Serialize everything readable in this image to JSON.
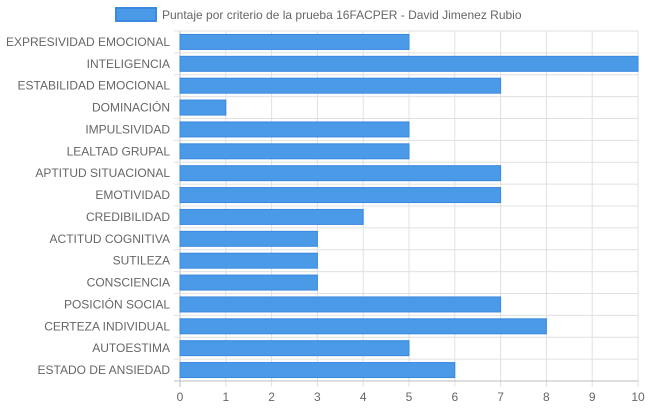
{
  "chart_data": {
    "type": "bar",
    "orientation": "horizontal",
    "categories": [
      "EXPRESIVIDAD EMOCIONAL",
      "INTELIGENCIA",
      "ESTABILIDAD EMOCIONAL",
      "DOMINACIÓN",
      "IMPULSIVIDAD",
      "LEALTAD GRUPAL",
      "APTITUD SITUACIONAL",
      "EMOTIVIDAD",
      "CREDIBILIDAD",
      "ACTITUD COGNITIVA",
      "SUTILEZA",
      "CONSCIENCIA",
      "POSICIÓN SOCIAL",
      "CERTEZA INDIVIDUAL",
      "AUTOESTIMA",
      "ESTADO DE ANSIEDAD"
    ],
    "series": [
      {
        "name": "Puntaje por criterio de la prueba 16FACPER - David Jimenez Rubio",
        "values": [
          5,
          10,
          7,
          1,
          5,
          5,
          7,
          7,
          4,
          3,
          3,
          3,
          7,
          8,
          5,
          6
        ],
        "color": "#4a9ae8",
        "border_color": "#3a88e0"
      }
    ],
    "xlim": [
      0,
      10
    ],
    "xticks": [
      "0",
      "1",
      "2",
      "3",
      "4",
      "5",
      "6",
      "7",
      "8",
      "9",
      "10"
    ],
    "grid": true,
    "legend_position": "top-center",
    "title": "",
    "xlabel": "",
    "ylabel": ""
  }
}
